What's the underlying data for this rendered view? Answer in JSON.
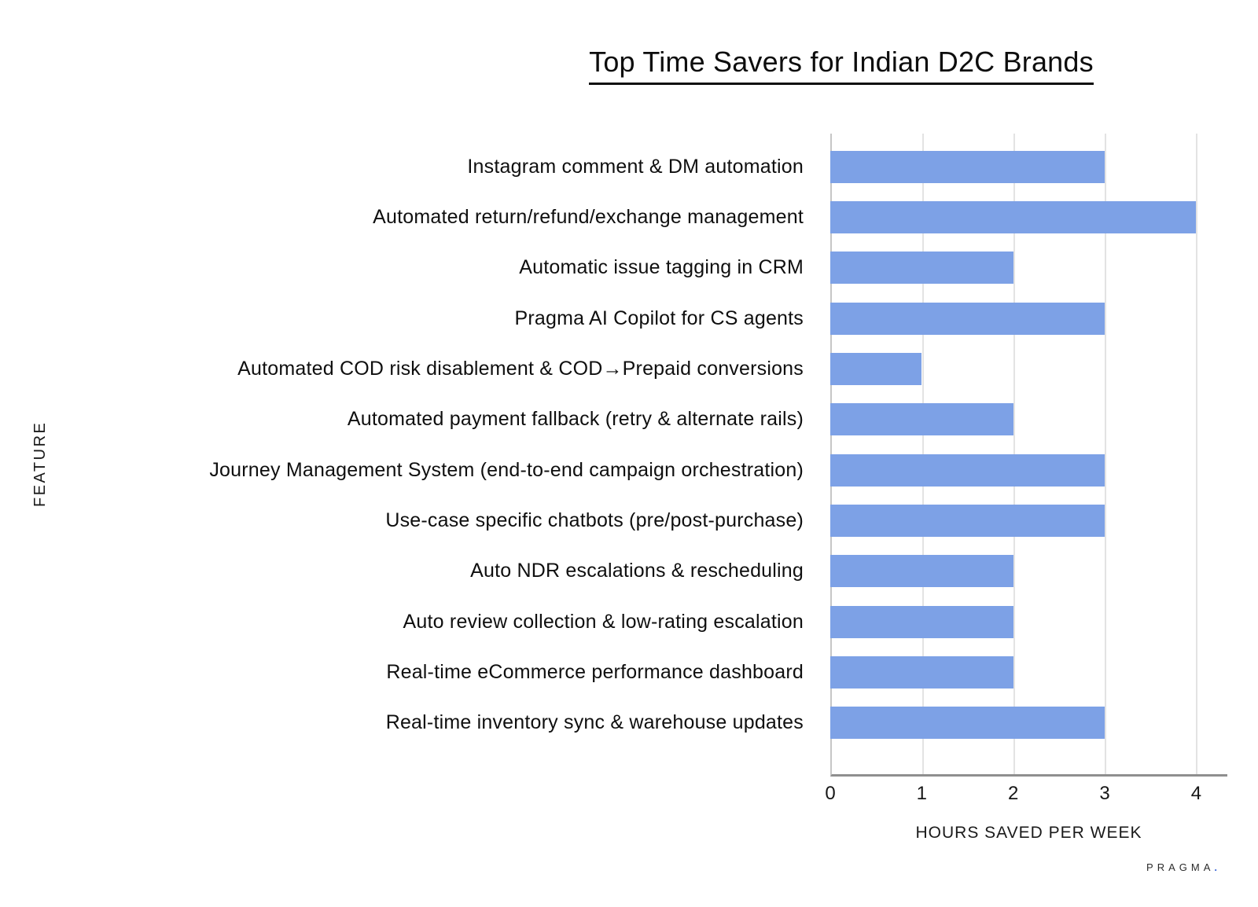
{
  "brand": {
    "name": "PRAGMA",
    "dot": "."
  },
  "chart_data": {
    "type": "bar",
    "orientation": "horizontal",
    "title": "Top Time Savers for Indian D2C Brands",
    "xlabel": "HOURS SAVED PER WEEK",
    "ylabel": "FEATURE",
    "categories": [
      "Instagram comment & DM automation",
      "Automated return/refund/exchange management",
      "Automatic issue tagging in CRM",
      "Pragma AI Copilot for CS agents",
      "Automated COD risk disablement & COD→Prepaid conversions",
      "Automated payment fallback (retry & alternate rails)",
      "Journey Management System (end-to-end campaign orchestration)",
      "Use-case specific chatbots (pre/post-purchase)",
      "Auto NDR escalations & rescheduling",
      "Auto review collection & low-rating escalation",
      "Real-time eCommerce performance dashboard",
      "Real-time inventory sync & warehouse updates"
    ],
    "values": [
      3,
      4,
      2,
      3,
      1,
      2,
      3,
      3,
      2,
      2,
      2,
      3
    ],
    "xticks": [
      0,
      1,
      2,
      3,
      4
    ],
    "xlim": [
      0,
      4.34
    ],
    "grid": "vertical",
    "legend": "none",
    "colors": {
      "bar": "#7da1e6",
      "gridline": "#e3e3e3",
      "axis_bottom": "#8f8f8f",
      "axis_left": "#c6c6c6",
      "text": "#111111",
      "brand_dot": "#3f6ad8"
    }
  }
}
